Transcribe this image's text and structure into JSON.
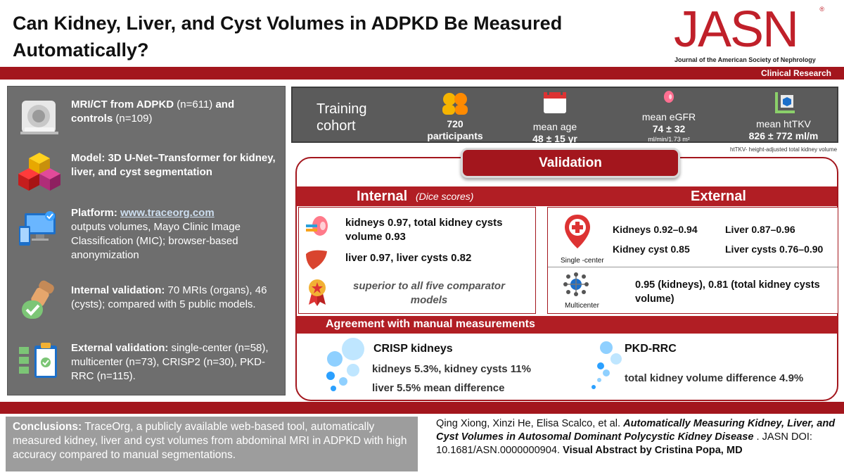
{
  "header": {
    "title": "Can Kidney, Liver, and Cyst Volumes in ADPKD Be Measured Automatically?",
    "logo": "JASN",
    "logo_mark": "®",
    "journal": "Journal of the American Society of Nephrology",
    "section": "Clinical Research"
  },
  "left": {
    "i1_bold": "MRI/CT from ADPKD",
    "i1_mid": " (n=611) ",
    "i1_bold2": "and",
    "i1_bold3": "controls",
    "i1_tail": " (n=109)",
    "i2": "Model: 3D U-Net–Transformer for kidney, liver, and cyst segmentation",
    "i3_bold": "Platform: ",
    "i3_link": "www.traceorg.com",
    "i3_tail": "outputs volumes, Mayo Clinic Image Classification (MIC); browser-based anonymization",
    "i4_bold": "Internal validation:",
    "i4_tail": " 70 MRIs (organs), 46 (cysts); compared with 5 public models.",
    "i5_bold": "External validation:",
    "i5_tail": " single-center (n=58), multicenter (n=73), CRISP2 (n=30), PKD-RRC (n=115)."
  },
  "training": {
    "label": "Training cohort",
    "participants_value": "720",
    "participants_label": "participants",
    "age_label": "mean age",
    "age_value": "48 ± 15 yr",
    "egfr_label": "mean eGFR",
    "egfr_value": "74 ± 32",
    "egfr_unit": "ml/min/1.73 m²",
    "httkv_label": "mean htTKV",
    "httkv_value": "826 ± 772 ml/m",
    "footnote": "htTKV- height-adjusted total kidney volume"
  },
  "validation": {
    "title": "Validation",
    "internal": {
      "title": "Internal",
      "subtitle": "(Dice scores)",
      "kidneys": "kidneys 0.97, total kidney cysts volume 0.93",
      "liver": "liver 0.97, liver cysts 0.82",
      "superior": "superior to all five comparator models"
    },
    "external": {
      "title": "External",
      "single_label": "Single -center",
      "kidneys": "Kidneys 0.92–0.94",
      "liver": "Liver 0.87–0.96",
      "kidney_cyst": "Kidney cyst 0.85",
      "liver_cysts": "Liver cysts 0.76–0.90",
      "multi_label": "Multicenter",
      "multi_result": "0.95 (kidneys), 0.81 (total kidney cysts volume)"
    }
  },
  "agreement": {
    "title": "Agreement with manual measurements",
    "crisp_title": "CRISP kidneys",
    "crisp_line1": "kidneys 5.3%, kidney cysts 11%",
    "crisp_line2": "liver 5.5% mean difference",
    "pkd_title": "PKD-RRC",
    "pkd_line": "total kidney volume difference 4.9%"
  },
  "conclusion": {
    "label": "Conclusions:",
    "text": " TraceOrg, a publicly available web-based tool, automatically measured kidney, liver and cyst volumes from abdominal MRI in ADPKD with high accuracy compared to manual segmentations."
  },
  "citation": {
    "authors": "Qing Xiong, Xinzi He, Elisa Scalco, et al. ",
    "title": "Automatically Measuring Kidney, Liver, and Cyst Volumes in Autosomal Dominant Polycystic Kidney Disease",
    "doi": ". JASN DOI: 10.1681/ASN.0000000904. ",
    "credit": "Visual Abstract by Cristina Popa, MD"
  }
}
